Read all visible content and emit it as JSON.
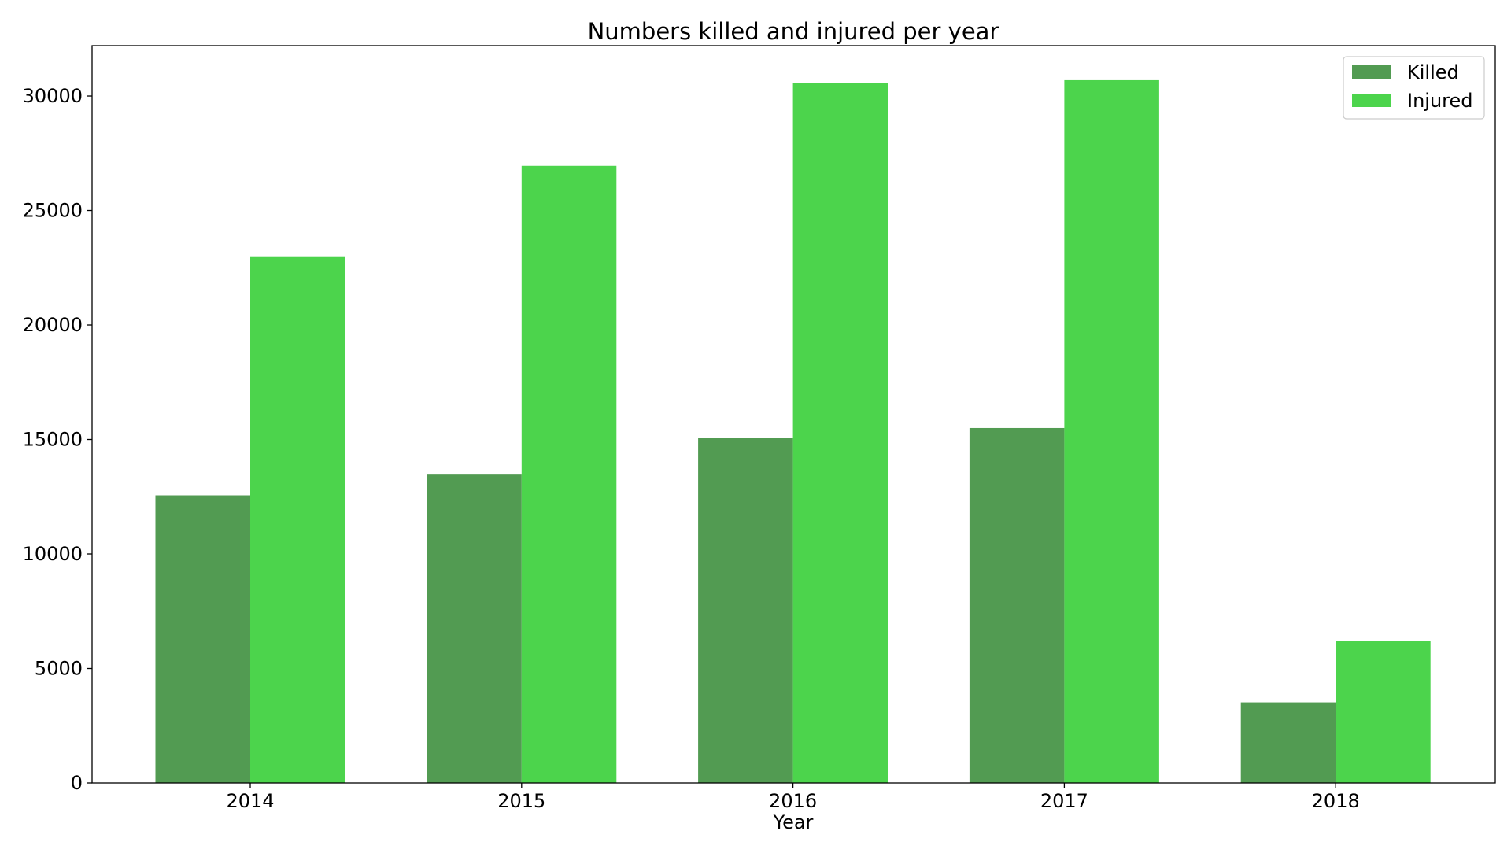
{
  "chart_data": {
    "type": "bar",
    "title": "Numbers killed and injured per year",
    "xlabel": "Year",
    "ylabel": "",
    "categories": [
      "2014",
      "2015",
      "2016",
      "2017",
      "2018"
    ],
    "series": [
      {
        "name": "Killed",
        "color": "#529b52",
        "values": [
          12560,
          13500,
          15080,
          15500,
          3520
        ]
      },
      {
        "name": "Injured",
        "color": "#4cd44c",
        "values": [
          23000,
          26950,
          30580,
          30690,
          6190
        ]
      }
    ],
    "ylim": [
      0,
      32200
    ],
    "yticks": [
      0,
      5000,
      10000,
      15000,
      20000,
      25000,
      30000
    ],
    "ytick_labels": [
      "0",
      "5000",
      "10000",
      "15000",
      "20000",
      "25000",
      "30000"
    ],
    "grid": false,
    "legend_position": "top-right"
  }
}
